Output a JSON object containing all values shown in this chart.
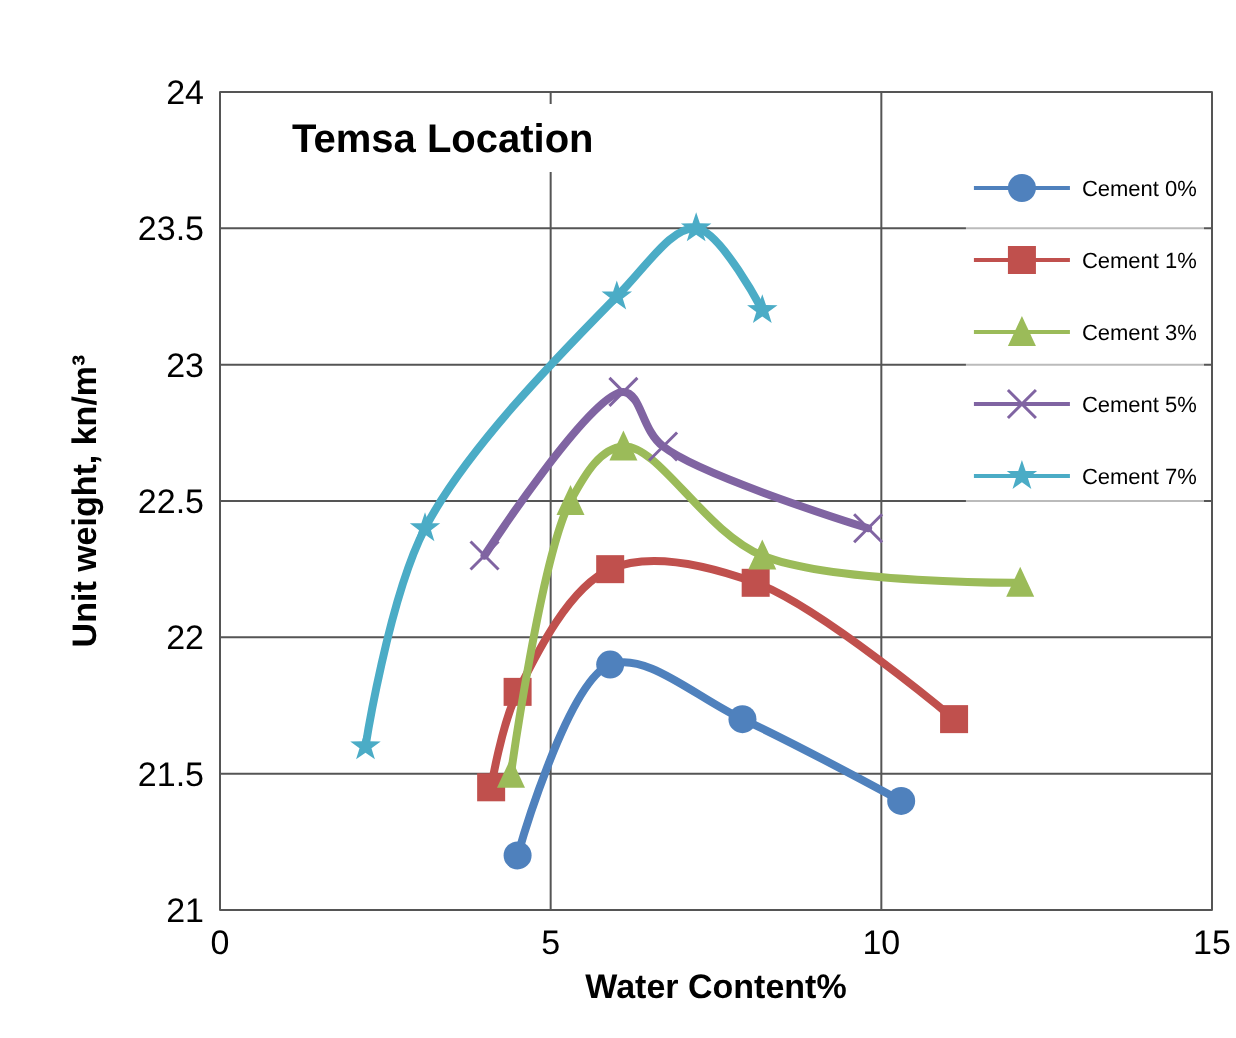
{
  "chart_data": {
    "type": "line",
    "title": "Temsa Location",
    "xlabel": "Water Content%",
    "ylabel": "Unit weight, kn/m³",
    "xlim": [
      0,
      15
    ],
    "xticks": [
      0,
      5,
      10,
      15
    ],
    "ylim": [
      21,
      24
    ],
    "yticks": [
      21,
      21.5,
      22,
      22.5,
      23,
      23.5,
      24
    ],
    "grid": true,
    "legend": "right",
    "series": [
      {
        "name": "Cement 0%",
        "color": "#4f81bd",
        "marker": "circle",
        "x": [
          4.5,
          5.9,
          7.9,
          10.3
        ],
        "values": [
          21.2,
          21.9,
          21.7,
          21.4
        ]
      },
      {
        "name": "Cement 1%",
        "color": "#c0504d",
        "marker": "square",
        "x": [
          4.1,
          4.5,
          5.9,
          8.1,
          11.1
        ],
        "values": [
          21.45,
          21.8,
          22.25,
          22.2,
          21.7
        ]
      },
      {
        "name": "Cement 3%",
        "color": "#9bbb59",
        "marker": "triangle",
        "x": [
          4.4,
          5.3,
          6.1,
          8.2,
          12.1
        ],
        "values": [
          21.5,
          22.5,
          22.7,
          22.3,
          22.2
        ]
      },
      {
        "name": "Cement 5%",
        "color": "#8064a2",
        "marker": "cross",
        "x": [
          4.0,
          6.1,
          6.7,
          9.8
        ],
        "values": [
          22.3,
          22.9,
          22.7,
          22.4
        ]
      },
      {
        "name": "Cement 7%",
        "color": "#4bacc6",
        "marker": "star",
        "x": [
          2.2,
          3.1,
          6.0,
          7.2,
          8.2
        ],
        "values": [
          21.6,
          22.4,
          23.25,
          23.5,
          23.2
        ]
      }
    ]
  }
}
